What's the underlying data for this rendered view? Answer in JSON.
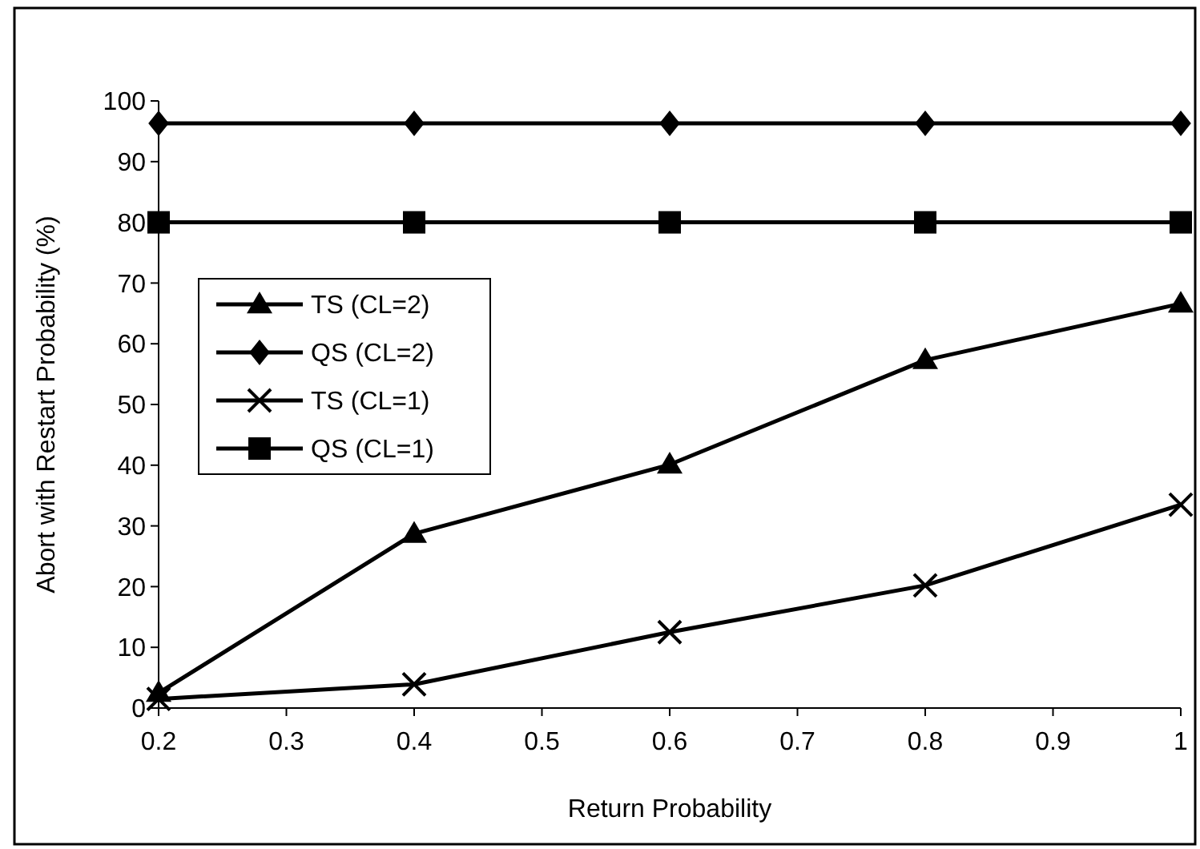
{
  "chart_data": {
    "type": "line",
    "xlabel": "Return Probability",
    "ylabel": "Abort with Restart Probability (%)",
    "x": [
      0.2,
      0.4,
      0.6,
      0.8,
      1
    ],
    "xlim": [
      0.2,
      1
    ],
    "xticks": [
      0.2,
      0.3,
      0.4,
      0.5,
      0.6,
      0.7,
      0.8,
      0.9,
      1
    ],
    "ylim": [
      0,
      100
    ],
    "yticks": [
      0,
      10,
      20,
      30,
      40,
      50,
      60,
      70,
      80,
      90,
      100
    ],
    "grid": false,
    "legend": "left",
    "series": [
      {
        "name": "TS (CL=2)",
        "color": "#000000",
        "marker": "triangle",
        "values": [
          2.5,
          28.7,
          40.1,
          57.3,
          66.6
        ]
      },
      {
        "name": "QS (CL=2)",
        "color": "#000000",
        "marker": "diamond",
        "values": [
          96.3,
          96.3,
          96.3,
          96.3,
          96.3
        ]
      },
      {
        "name": "TS (CL=1)",
        "color": "#000000",
        "marker": "cross",
        "values": [
          1.5,
          3.9,
          12.5,
          20.2,
          33.5
        ]
      },
      {
        "name": "QS (CL=1)",
        "color": "#000000",
        "marker": "square",
        "values": [
          80,
          80,
          80,
          80,
          80
        ]
      }
    ]
  }
}
